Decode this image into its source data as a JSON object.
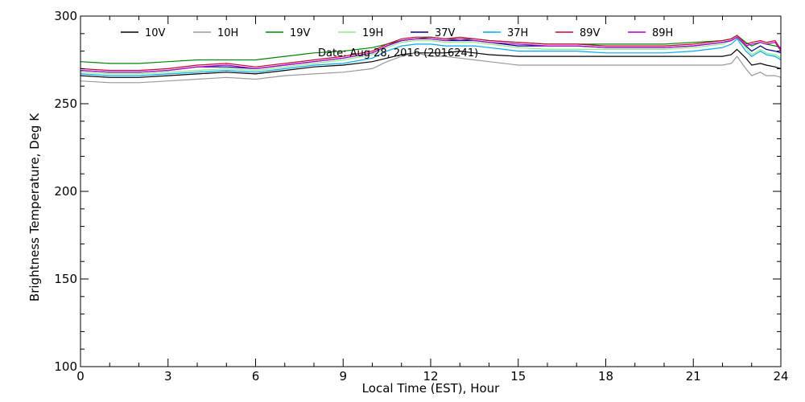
{
  "chart_data": {
    "type": "line",
    "title": "",
    "annotation": "Date: Aug 28, 2016 (2016241)",
    "xlabel": "Local Time (EST), Hour",
    "ylabel": "Brightness Temperature, Deg K",
    "xlim": [
      0,
      24
    ],
    "ylim": [
      100,
      300
    ],
    "xticks": [
      0,
      3,
      6,
      9,
      12,
      15,
      18,
      21,
      24
    ],
    "yticks": [
      100,
      150,
      200,
      250,
      300
    ],
    "grid": false,
    "legend": "top",
    "x": [
      0,
      1,
      2,
      3,
      4,
      5,
      6,
      7,
      8,
      9,
      10,
      10.5,
      11,
      11.5,
      12,
      12.5,
      13,
      13.5,
      14,
      15,
      16,
      17,
      18,
      19,
      20,
      21,
      22,
      22.3,
      22.5,
      22.8,
      23,
      23.3,
      23.5,
      23.8,
      24
    ],
    "series": [
      {
        "name": "10V",
        "color": "#000000",
        "values": [
          266,
          265,
          265,
          266,
          267,
          268,
          267,
          269,
          271,
          272,
          274,
          276,
          278,
          279,
          279,
          279,
          280,
          279,
          278,
          277,
          277,
          277,
          277,
          277,
          277,
          277,
          277,
          278,
          281,
          276,
          272,
          273,
          272,
          271,
          270
        ]
      },
      {
        "name": "10H",
        "color": "#999999",
        "values": [
          263,
          262,
          262,
          263,
          264,
          265,
          264,
          266,
          267,
          268,
          270,
          274,
          277,
          279,
          277,
          277,
          276,
          275,
          274,
          272,
          272,
          272,
          272,
          272,
          272,
          272,
          272,
          273,
          277,
          270,
          266,
          268,
          266,
          266,
          265
        ]
      },
      {
        "name": "19V",
        "color": "#008800",
        "values": [
          274,
          273,
          273,
          274,
          275,
          275,
          275,
          277,
          279,
          280,
          282,
          284,
          286,
          287,
          288,
          287,
          287,
          287,
          286,
          285,
          284,
          284,
          284,
          284,
          284,
          285,
          286,
          287,
          289,
          285,
          283,
          285,
          284,
          283,
          282
        ]
      },
      {
        "name": "19H",
        "color": "#88ee88",
        "values": [
          268,
          267,
          267,
          268,
          269,
          270,
          269,
          271,
          273,
          275,
          278,
          282,
          285,
          286,
          286,
          285,
          285,
          285,
          284,
          282,
          281,
          281,
          281,
          281,
          281,
          282,
          284,
          286,
          288,
          282,
          278,
          281,
          279,
          278,
          276
        ]
      },
      {
        "name": "37V",
        "color": "#00008b",
        "values": [
          269,
          268,
          268,
          269,
          271,
          271,
          270,
          272,
          274,
          276,
          279,
          283,
          286,
          287,
          287,
          286,
          286,
          286,
          285,
          283,
          283,
          283,
          282,
          282,
          282,
          283,
          285,
          286,
          288,
          283,
          280,
          283,
          281,
          280,
          279
        ]
      },
      {
        "name": "37H",
        "color": "#00aaee",
        "values": [
          267,
          266,
          266,
          267,
          268,
          269,
          268,
          270,
          272,
          273,
          276,
          280,
          283,
          284,
          284,
          283,
          283,
          283,
          282,
          280,
          280,
          280,
          279,
          279,
          279,
          280,
          282,
          284,
          287,
          280,
          277,
          280,
          278,
          277,
          275
        ]
      },
      {
        "name": "89V",
        "color": "#cc0033",
        "values": [
          270,
          269,
          269,
          270,
          272,
          273,
          271,
          273,
          275,
          277,
          280,
          284,
          287,
          288,
          288,
          287,
          288,
          287,
          286,
          285,
          284,
          284,
          283,
          283,
          283,
          284,
          286,
          287,
          289,
          284,
          285,
          286,
          285,
          286,
          281
        ]
      },
      {
        "name": "89H",
        "color": "#aa00cc",
        "values": [
          269,
          268,
          268,
          269,
          271,
          272,
          270,
          272,
          274,
          276,
          279,
          283,
          286,
          287,
          287,
          286,
          287,
          286,
          285,
          284,
          283,
          283,
          282,
          282,
          282,
          283,
          285,
          286,
          288,
          283,
          284,
          285,
          284,
          285,
          280
        ]
      }
    ]
  }
}
